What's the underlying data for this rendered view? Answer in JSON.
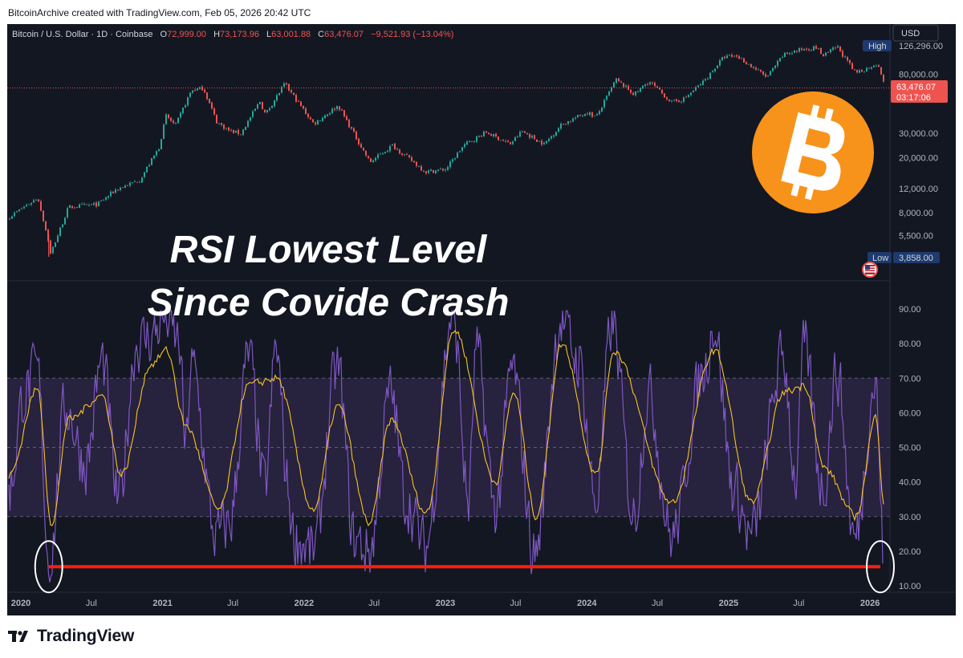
{
  "attribution": "BitcoinArchive created with TradingView.com, Feb 05, 2026 20:42 UTC",
  "footer_brand": "TradingView",
  "colors": {
    "background": "#131722",
    "candle_up": "#26a69a",
    "candle_down": "#ef5350",
    "rsi_line": "#7e57c2",
    "rsi_ma": "#f7c325",
    "rsi_band": "#2a2340",
    "annotation_line": "#ff1e0a",
    "bitcoin_orange": "#f7931a",
    "text_light": "#d1d4dc"
  },
  "legend": {
    "symbol": "Bitcoin / U.S. Dollar · 1D · Coinbase",
    "o_label": "O",
    "o_value": "72,999.00",
    "h_label": "H",
    "h_value": "73,173.96",
    "l_label": "L",
    "l_value": "63,001.88",
    "c_label": "C",
    "c_value": "63,476.07",
    "change": "−9,521.93 (−13.04%)"
  },
  "currency_button": "USD",
  "headline": {
    "line1": "RSI Lowest Level",
    "line2": "Since Covide Crash"
  },
  "logo_icon": "bitcoin-icon",
  "chart_data": [
    {
      "type": "candlestick",
      "title": "Bitcoin / U.S. Dollar · 1D · Coinbase",
      "y_scale": "log",
      "ylim": [
        3858,
        126296
      ],
      "y_ticks": [
        {
          "value": 80000,
          "label": "80,000.00"
        },
        {
          "value": 30000,
          "label": "30,000.00"
        },
        {
          "value": 20000,
          "label": "20,000.00"
        },
        {
          "value": 12000,
          "label": "12,000.00"
        },
        {
          "value": 8000,
          "label": "8,000.00"
        },
        {
          "value": 5500,
          "label": "5,500.00"
        }
      ],
      "high_marker": {
        "label": "High",
        "value_label": "126,296.00",
        "value": 126296
      },
      "low_marker": {
        "label": "Low",
        "value_label": "3,858.00",
        "value": 3858
      },
      "last_price": {
        "value": 63476.07,
        "label": "63,476.07",
        "countdown": "03:17:06"
      },
      "approx_path": [
        {
          "x": "2019-12-01",
          "y": 7500
        },
        {
          "x": "2020-02-12",
          "y": 10300
        },
        {
          "x": "2020-03-12",
          "y": 4800
        },
        {
          "x": "2020-03-13",
          "y": 3858
        },
        {
          "x": "2020-05-01",
          "y": 8800
        },
        {
          "x": "2020-07-15",
          "y": 9200
        },
        {
          "x": "2020-09-01",
          "y": 11800
        },
        {
          "x": "2020-11-01",
          "y": 13800
        },
        {
          "x": "2020-12-20",
          "y": 23500
        },
        {
          "x": "2021-01-08",
          "y": 40000
        },
        {
          "x": "2021-02-01",
          "y": 34000
        },
        {
          "x": "2021-03-14",
          "y": 61000
        },
        {
          "x": "2021-04-14",
          "y": 63500
        },
        {
          "x": "2021-05-19",
          "y": 36000
        },
        {
          "x": "2021-06-22",
          "y": 31000
        },
        {
          "x": "2021-07-20",
          "y": 29800
        },
        {
          "x": "2021-09-07",
          "y": 51000
        },
        {
          "x": "2021-09-21",
          "y": 41000
        },
        {
          "x": "2021-11-10",
          "y": 68000
        },
        {
          "x": "2022-01-24",
          "y": 35000
        },
        {
          "x": "2022-03-28",
          "y": 47500
        },
        {
          "x": "2022-06-18",
          "y": 18500
        },
        {
          "x": "2022-08-15",
          "y": 24500
        },
        {
          "x": "2022-11-09",
          "y": 15800
        },
        {
          "x": "2022-12-31",
          "y": 16500
        },
        {
          "x": "2023-02-15",
          "y": 24500
        },
        {
          "x": "2023-04-14",
          "y": 30500
        },
        {
          "x": "2023-06-15",
          "y": 25000
        },
        {
          "x": "2023-07-15",
          "y": 31000
        },
        {
          "x": "2023-09-11",
          "y": 25000
        },
        {
          "x": "2023-10-25",
          "y": 34500
        },
        {
          "x": "2023-12-31",
          "y": 42500
        },
        {
          "x": "2024-01-23",
          "y": 39000
        },
        {
          "x": "2024-03-14",
          "y": 73000
        },
        {
          "x": "2024-05-01",
          "y": 57000
        },
        {
          "x": "2024-06-07",
          "y": 71000
        },
        {
          "x": "2024-08-05",
          "y": 50000
        },
        {
          "x": "2024-09-06",
          "y": 53000
        },
        {
          "x": "2024-10-29",
          "y": 72000
        },
        {
          "x": "2024-12-17",
          "y": 106000
        },
        {
          "x": "2025-01-20",
          "y": 108000
        },
        {
          "x": "2025-04-08",
          "y": 76000
        },
        {
          "x": "2025-05-22",
          "y": 111000
        },
        {
          "x": "2025-07-14",
          "y": 122000
        },
        {
          "x": "2025-08-14",
          "y": 124000
        },
        {
          "x": "2025-09-01",
          "y": 108000
        },
        {
          "x": "2025-10-06",
          "y": 126296
        },
        {
          "x": "2025-11-21",
          "y": 82000
        },
        {
          "x": "2025-12-20",
          "y": 87000
        },
        {
          "x": "2026-01-14",
          "y": 96000
        },
        {
          "x": "2026-01-31",
          "y": 78000
        },
        {
          "x": "2026-02-05",
          "y": 63476
        }
      ]
    },
    {
      "type": "line",
      "title": "RSI",
      "ylim": [
        10,
        90
      ],
      "y_ticks": [
        {
          "value": 90,
          "label": "90.00"
        },
        {
          "value": 80,
          "label": "80.00"
        },
        {
          "value": 70,
          "label": "70.00"
        },
        {
          "value": 60,
          "label": "60.00"
        },
        {
          "value": 50,
          "label": "50.00"
        },
        {
          "value": 40,
          "label": "40.00"
        },
        {
          "value": 30,
          "label": "30.00"
        },
        {
          "value": 20,
          "label": "20.00"
        },
        {
          "value": 10,
          "label": "10.00"
        }
      ],
      "band": [
        30,
        70
      ],
      "midline": 50,
      "series": [
        {
          "values": [
            {
              "x": "2019-12-01",
              "y": 38
            },
            {
              "x": "2020-01-10",
              "y": 66
            },
            {
              "x": "2020-02-12",
              "y": 72
            },
            {
              "x": "2020-03-13",
              "y": 16
            },
            {
              "x": "2020-04-25",
              "y": 62
            },
            {
              "x": "2020-06-15",
              "y": 45
            },
            {
              "x": "2020-07-28",
              "y": 75
            },
            {
              "x": "2020-09-08",
              "y": 34
            },
            {
              "x": "2020-10-25",
              "y": 80
            },
            {
              "x": "2020-12-01",
              "y": 82
            },
            {
              "x": "2021-01-08",
              "y": 88
            },
            {
              "x": "2021-02-12",
              "y": 80
            },
            {
              "x": "2021-03-01",
              "y": 48
            },
            {
              "x": "2021-03-14",
              "y": 74
            },
            {
              "x": "2021-05-19",
              "y": 24
            },
            {
              "x": "2021-06-22",
              "y": 28
            },
            {
              "x": "2021-08-10",
              "y": 76
            },
            {
              "x": "2021-09-21",
              "y": 38
            },
            {
              "x": "2021-10-20",
              "y": 79
            },
            {
              "x": "2021-11-20",
              "y": 38
            },
            {
              "x": "2021-12-04",
              "y": 24
            },
            {
              "x": "2022-01-24",
              "y": 20
            },
            {
              "x": "2022-03-28",
              "y": 73
            },
            {
              "x": "2022-05-10",
              "y": 23
            },
            {
              "x": "2022-06-18",
              "y": 20
            },
            {
              "x": "2022-08-12",
              "y": 66
            },
            {
              "x": "2022-09-20",
              "y": 35
            },
            {
              "x": "2022-11-09",
              "y": 21
            },
            {
              "x": "2023-01-20",
              "y": 89
            },
            {
              "x": "2023-03-01",
              "y": 33
            },
            {
              "x": "2023-03-20",
              "y": 78
            },
            {
              "x": "2023-05-10",
              "y": 32
            },
            {
              "x": "2023-06-22",
              "y": 73
            },
            {
              "x": "2023-08-18",
              "y": 19
            },
            {
              "x": "2023-10-25",
              "y": 87
            },
            {
              "x": "2023-12-10",
              "y": 75
            },
            {
              "x": "2024-01-23",
              "y": 34
            },
            {
              "x": "2024-03-05",
              "y": 86
            },
            {
              "x": "2024-05-01",
              "y": 30
            },
            {
              "x": "2024-06-07",
              "y": 66
            },
            {
              "x": "2024-08-05",
              "y": 24
            },
            {
              "x": "2024-10-29",
              "y": 72
            },
            {
              "x": "2024-11-22",
              "y": 86
            },
            {
              "x": "2025-01-13",
              "y": 38
            },
            {
              "x": "2025-02-26",
              "y": 24
            },
            {
              "x": "2025-05-22",
              "y": 76
            },
            {
              "x": "2025-06-22",
              "y": 40
            },
            {
              "x": "2025-07-14",
              "y": 79
            },
            {
              "x": "2025-09-01",
              "y": 38
            },
            {
              "x": "2025-10-06",
              "y": 72
            },
            {
              "x": "2025-11-21",
              "y": 23
            },
            {
              "x": "2026-01-14",
              "y": 69
            },
            {
              "x": "2026-02-05",
              "y": 16
            }
          ]
        },
        {
          "values": [
            {
              "x": "2019-12-01",
              "y": 42
            },
            {
              "x": "2020-02-12",
              "y": 67
            },
            {
              "x": "2020-03-20",
              "y": 27
            },
            {
              "x": "2020-05-01",
              "y": 58
            },
            {
              "x": "2020-07-28",
              "y": 65
            },
            {
              "x": "2020-09-15",
              "y": 42
            },
            {
              "x": "2020-12-01",
              "y": 74
            },
            {
              "x": "2021-01-10",
              "y": 78
            },
            {
              "x": "2021-03-01",
              "y": 56
            },
            {
              "x": "2021-05-25",
              "y": 32
            },
            {
              "x": "2021-08-10",
              "y": 68
            },
            {
              "x": "2021-10-20",
              "y": 70
            },
            {
              "x": "2022-01-24",
              "y": 32
            },
            {
              "x": "2022-03-28",
              "y": 62
            },
            {
              "x": "2022-06-18",
              "y": 28
            },
            {
              "x": "2022-08-12",
              "y": 58
            },
            {
              "x": "2022-11-12",
              "y": 31
            },
            {
              "x": "2023-01-22",
              "y": 84
            },
            {
              "x": "2023-05-10",
              "y": 40
            },
            {
              "x": "2023-06-25",
              "y": 66
            },
            {
              "x": "2023-08-22",
              "y": 30
            },
            {
              "x": "2023-10-27",
              "y": 80
            },
            {
              "x": "2024-01-25",
              "y": 42
            },
            {
              "x": "2024-03-08",
              "y": 78
            },
            {
              "x": "2024-08-07",
              "y": 34
            },
            {
              "x": "2024-11-24",
              "y": 78
            },
            {
              "x": "2025-02-28",
              "y": 34
            },
            {
              "x": "2025-05-24",
              "y": 66
            },
            {
              "x": "2025-07-16",
              "y": 68
            },
            {
              "x": "2025-09-03",
              "y": 44
            },
            {
              "x": "2025-11-24",
              "y": 30
            },
            {
              "x": "2026-01-16",
              "y": 59
            },
            {
              "x": "2026-02-05",
              "y": 33
            }
          ]
        }
      ],
      "annotation": {
        "type": "horizontal-line",
        "value": 15.5,
        "from": "2020-03-13",
        "to": "2026-02-05"
      }
    }
  ],
  "x_axis": {
    "ticks": [
      {
        "x": "2020-01-01",
        "label": "2020",
        "bold": true
      },
      {
        "x": "2020-07-01",
        "label": "Jul",
        "bold": false
      },
      {
        "x": "2021-01-01",
        "label": "2021",
        "bold": true
      },
      {
        "x": "2021-07-01",
        "label": "Jul",
        "bold": false
      },
      {
        "x": "2022-01-01",
        "label": "2022",
        "bold": true
      },
      {
        "x": "2022-07-01",
        "label": "Jul",
        "bold": false
      },
      {
        "x": "2023-01-01",
        "label": "2023",
        "bold": true
      },
      {
        "x": "2023-07-01",
        "label": "Jul",
        "bold": false
      },
      {
        "x": "2024-01-01",
        "label": "2024",
        "bold": true
      },
      {
        "x": "2024-07-01",
        "label": "Jul",
        "bold": false
      },
      {
        "x": "2025-01-01",
        "label": "2025",
        "bold": true
      },
      {
        "x": "2025-07-01",
        "label": "Jul",
        "bold": false
      },
      {
        "x": "2026-01-01",
        "label": "2026",
        "bold": true
      }
    ]
  }
}
